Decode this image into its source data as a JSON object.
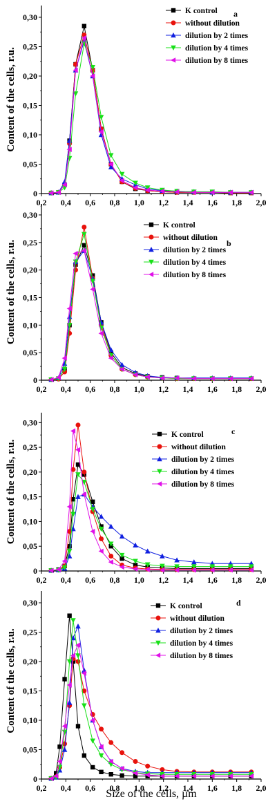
{
  "figure": {
    "x_axis_label": "Size of the cells, µm"
  },
  "colors": {
    "K control": "#000000",
    "without dilution": "#e8120c",
    "dilution by 2 times": "#1020e0",
    "dilution by 4 times": "#18e018",
    "dilution by 8 times": "#e010e8"
  },
  "chart_data": [
    {
      "type": "line",
      "panel_label": "a",
      "ylabel": "Content of the cells, r.u.",
      "xlabel": "",
      "xlim": [
        0.2,
        2.0
      ],
      "ylim": [
        0,
        0.32
      ],
      "x_ticks": [
        "0,2",
        "0,4",
        "0,6",
        "0,8",
        "1,0",
        "1,2",
        "1,4",
        "1,6",
        "1,8",
        "2,0"
      ],
      "y_ticks": [
        "0",
        "0,05",
        "0,10",
        "0,15",
        "0,20",
        "0,25",
        "0,30"
      ],
      "x": [
        0.28,
        0.34,
        0.39,
        0.43,
        0.48,
        0.55,
        0.62,
        0.69,
        0.77,
        0.86,
        0.97,
        1.07,
        1.19,
        1.31,
        1.45,
        1.6,
        1.75,
        1.92
      ],
      "series": [
        {
          "name": "K control",
          "marker": "square",
          "values": [
            0.001,
            0.002,
            0.015,
            0.09,
            0.22,
            0.285,
            0.21,
            0.11,
            0.05,
            0.02,
            0.008,
            0.005,
            0.003,
            0.002,
            0.002,
            0.002,
            0.001,
            0.001
          ]
        },
        {
          "name": "without dilution",
          "marker": "circle",
          "values": [
            0.001,
            0.002,
            0.015,
            0.085,
            0.22,
            0.27,
            0.21,
            0.11,
            0.05,
            0.02,
            0.009,
            0.005,
            0.003,
            0.002,
            0.002,
            0.002,
            0.001,
            0.001
          ]
        },
        {
          "name": "dilution by 2 times",
          "marker": "triangle-up",
          "values": [
            0.001,
            0.002,
            0.02,
            0.09,
            0.21,
            0.26,
            0.2,
            0.1,
            0.045,
            0.025,
            0.015,
            0.008,
            0.005,
            0.004,
            0.003,
            0.002,
            0.002,
            0.002
          ]
        },
        {
          "name": "dilution by 4 times",
          "marker": "triangle-down",
          "values": [
            0.001,
            0.002,
            0.01,
            0.06,
            0.17,
            0.255,
            0.215,
            0.13,
            0.065,
            0.033,
            0.018,
            0.01,
            0.006,
            0.004,
            0.003,
            0.003,
            0.002,
            0.002
          ]
        },
        {
          "name": "dilution by 8 times",
          "marker": "triangle-left",
          "values": [
            0.001,
            0.002,
            0.015,
            0.075,
            0.21,
            0.265,
            0.2,
            0.105,
            0.05,
            0.022,
            0.01,
            0.006,
            0.004,
            0.003,
            0.002,
            0.002,
            0.002,
            0.002
          ]
        }
      ]
    },
    {
      "type": "line",
      "panel_label": "b",
      "ylabel": "Content of the cells, r.u.",
      "xlabel": "",
      "xlim": [
        0.2,
        2.0
      ],
      "ylim": [
        0,
        0.32
      ],
      "x_ticks": [
        "0,2",
        "0,4",
        "0,6",
        "0,8",
        "1,0",
        "1,2",
        "1,4",
        "1,6",
        "1,8",
        "2,0"
      ],
      "y_ticks": [
        "0",
        "0,05",
        "0,10",
        "0,15",
        "0,20",
        "0,25",
        "0,30"
      ],
      "x": [
        0.28,
        0.34,
        0.39,
        0.43,
        0.48,
        0.55,
        0.62,
        0.69,
        0.77,
        0.86,
        0.97,
        1.07,
        1.19,
        1.31,
        1.45,
        1.6,
        1.75,
        1.92
      ],
      "series": [
        {
          "name": "K control",
          "marker": "square",
          "values": [
            0.001,
            0.003,
            0.02,
            0.1,
            0.21,
            0.245,
            0.19,
            0.105,
            0.05,
            0.023,
            0.012,
            0.007,
            0.005,
            0.004,
            0.003,
            0.003,
            0.003,
            0.003
          ]
        },
        {
          "name": "without dilution",
          "marker": "circle",
          "values": [
            0.001,
            0.002,
            0.015,
            0.085,
            0.2,
            0.278,
            0.185,
            0.1,
            0.045,
            0.02,
            0.01,
            0.006,
            0.004,
            0.003,
            0.003,
            0.003,
            0.003,
            0.003
          ]
        },
        {
          "name": "dilution by 2 times",
          "marker": "triangle-up",
          "values": [
            0.001,
            0.004,
            0.03,
            0.115,
            0.215,
            0.235,
            0.185,
            0.105,
            0.055,
            0.028,
            0.014,
            0.008,
            0.005,
            0.004,
            0.004,
            0.004,
            0.004,
            0.004
          ]
        },
        {
          "name": "dilution by 4 times",
          "marker": "triangle-down",
          "values": [
            0.001,
            0.003,
            0.02,
            0.1,
            0.215,
            0.265,
            0.18,
            0.095,
            0.045,
            0.02,
            0.01,
            0.006,
            0.004,
            0.003,
            0.003,
            0.003,
            0.003,
            0.003
          ]
        },
        {
          "name": "dilution by 8 times",
          "marker": "triangle-left",
          "values": [
            0.001,
            0.005,
            0.04,
            0.13,
            0.23,
            0.235,
            0.165,
            0.085,
            0.04,
            0.02,
            0.01,
            0.006,
            0.004,
            0.004,
            0.003,
            0.003,
            0.003,
            0.003
          ]
        }
      ]
    },
    {
      "type": "line",
      "panel_label": "c",
      "ylabel": "Content of the cells, r.u.",
      "xlabel": "",
      "xlim": [
        0.2,
        2.0
      ],
      "ylim": [
        0,
        0.32
      ],
      "x_ticks": [
        "0,2",
        "0,4",
        "0,6",
        "0,8",
        "1,0",
        "1,2",
        "1,4",
        "1,6",
        "1,8",
        "2,0"
      ],
      "y_ticks": [
        "0",
        "0,05",
        "0,10",
        "0,15",
        "0,20",
        "0,25",
        "0,30"
      ],
      "x": [
        0.28,
        0.34,
        0.39,
        0.43,
        0.46,
        0.5,
        0.55,
        0.62,
        0.69,
        0.77,
        0.86,
        0.97,
        1.07,
        1.19,
        1.31,
        1.45,
        1.6,
        1.75,
        1.92
      ],
      "series": [
        {
          "name": "K control",
          "marker": "square",
          "values": [
            0.001,
            0.003,
            0.01,
            0.05,
            0.145,
            0.215,
            0.195,
            0.14,
            0.09,
            0.05,
            0.025,
            0.012,
            0.008,
            0.006,
            0.005,
            0.005,
            0.005,
            0.005,
            0.005
          ]
        },
        {
          "name": "without dilution",
          "marker": "circle",
          "values": [
            0.001,
            0.002,
            0.01,
            0.08,
            0.205,
            0.295,
            0.2,
            0.12,
            0.065,
            0.03,
            0.012,
            0.006,
            0.004,
            0.003,
            0.003,
            0.003,
            0.003,
            0.003,
            0.003
          ]
        },
        {
          "name": "dilution by 2 times",
          "marker": "triangle-up",
          "values": [
            0.001,
            0.002,
            0.005,
            0.03,
            0.085,
            0.15,
            0.155,
            0.13,
            0.11,
            0.09,
            0.07,
            0.052,
            0.04,
            0.03,
            0.022,
            0.018,
            0.015,
            0.015,
            0.015
          ]
        },
        {
          "name": "dilution by 4 times",
          "marker": "triangle-down",
          "values": [
            0.001,
            0.002,
            0.007,
            0.04,
            0.115,
            0.195,
            0.18,
            0.125,
            0.085,
            0.055,
            0.032,
            0.02,
            0.013,
            0.01,
            0.009,
            0.009,
            0.009,
            0.009,
            0.009
          ]
        },
        {
          "name": "dilution by 8 times",
          "marker": "triangle-left",
          "values": [
            0.001,
            0.003,
            0.02,
            0.13,
            0.283,
            0.245,
            0.155,
            0.08,
            0.04,
            0.018,
            0.008,
            0.004,
            0.003,
            0.002,
            0.002,
            0.002,
            0.002,
            0.002,
            0.002
          ]
        }
      ]
    },
    {
      "type": "line",
      "panel_label": "d",
      "ylabel": "",
      "xlabel": "Size of the cells, µm",
      "xlim": [
        0.2,
        2.0
      ],
      "ylim": [
        0,
        0.32
      ],
      "x_ticks": [
        "0,2",
        "0,4",
        "0,6",
        "0,8",
        "1,0",
        "1,2",
        "1,4",
        "1,6",
        "1,8",
        "2,0"
      ],
      "y_ticks": [
        "0",
        "0,05",
        "0,10",
        "0,15",
        "0,20",
        "0,25",
        "0,30"
      ],
      "x": [
        0.28,
        0.32,
        0.35,
        0.39,
        0.43,
        0.46,
        0.5,
        0.55,
        0.62,
        0.69,
        0.77,
        0.86,
        0.97,
        1.07,
        1.19,
        1.31,
        1.45,
        1.6,
        1.75,
        1.92
      ],
      "series": [
        {
          "name": "K control",
          "marker": "square",
          "values": [
            0.001,
            0.01,
            0.055,
            0.17,
            0.278,
            0.2,
            0.09,
            0.04,
            0.02,
            0.012,
            0.008,
            0.006,
            0.005,
            0.005,
            0.005,
            0.005,
            0.005,
            0.005,
            0.005,
            0.005
          ]
        },
        {
          "name": "without dilution",
          "marker": "circle",
          "values": [
            0.001,
            0.004,
            0.02,
            0.06,
            0.125,
            0.205,
            0.2,
            0.15,
            0.11,
            0.085,
            0.062,
            0.045,
            0.03,
            0.022,
            0.016,
            0.013,
            0.012,
            0.012,
            0.012,
            0.012
          ]
        },
        {
          "name": "dilution by 2 times",
          "marker": "triangle-up",
          "values": [
            0.001,
            0.003,
            0.015,
            0.05,
            0.13,
            0.24,
            0.26,
            0.185,
            0.1,
            0.055,
            0.03,
            0.018,
            0.013,
            0.011,
            0.011,
            0.011,
            0.011,
            0.011,
            0.011,
            0.011
          ]
        },
        {
          "name": "dilution by 4 times",
          "marker": "triangle-down",
          "values": [
            0.001,
            0.003,
            0.02,
            0.08,
            0.2,
            0.27,
            0.21,
            0.125,
            0.065,
            0.04,
            0.025,
            0.016,
            0.011,
            0.009,
            0.008,
            0.008,
            0.008,
            0.008,
            0.008,
            0.008
          ]
        },
        {
          "name": "dilution by 8 times",
          "marker": "triangle-left",
          "values": [
            0.001,
            0.005,
            0.03,
            0.09,
            0.16,
            0.21,
            0.228,
            0.18,
            0.1,
            0.055,
            0.03,
            0.018,
            0.01,
            0.007,
            0.005,
            0.005,
            0.005,
            0.005,
            0.005,
            0.005
          ]
        }
      ]
    }
  ]
}
